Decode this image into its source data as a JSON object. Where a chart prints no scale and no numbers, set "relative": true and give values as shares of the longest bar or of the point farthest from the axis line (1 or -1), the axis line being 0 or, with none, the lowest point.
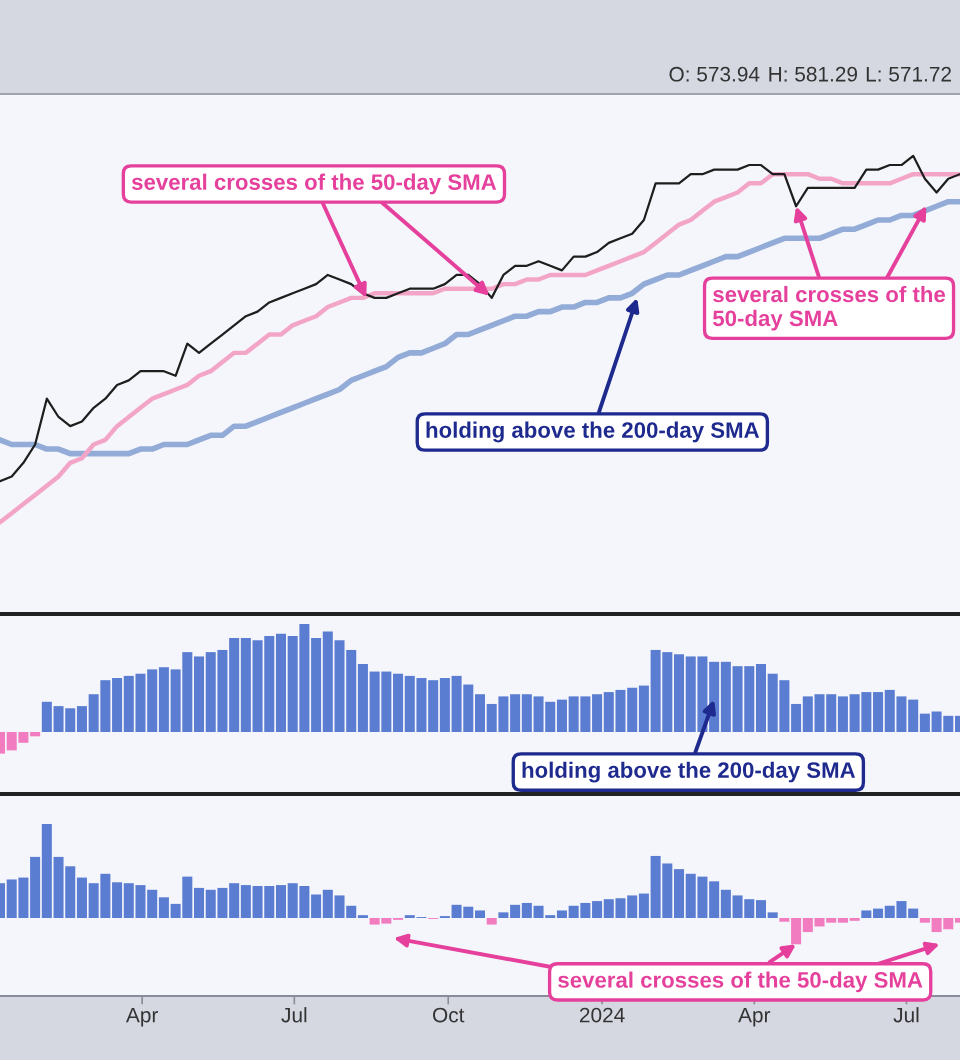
{
  "chart_data": [
    {
      "type": "line",
      "relative": true,
      "x": [
        "2023-01-06",
        "2023-01-13",
        "2023-01-20",
        "2023-01-27",
        "2023-02-03",
        "2023-02-10",
        "2023-02-17",
        "2023-02-24",
        "2023-03-03",
        "2023-03-10",
        "2023-03-17",
        "2023-03-24",
        "2023-03-31",
        "2023-04-07",
        "2023-04-14",
        "2023-04-21",
        "2023-04-28",
        "2023-05-05",
        "2023-05-12",
        "2023-05-19",
        "2023-05-26",
        "2023-06-02",
        "2023-06-09",
        "2023-06-16",
        "2023-06-23",
        "2023-06-30",
        "2023-07-07",
        "2023-07-14",
        "2023-07-21",
        "2023-07-28",
        "2023-08-04",
        "2023-08-11",
        "2023-08-18",
        "2023-08-25",
        "2023-09-01",
        "2023-09-08",
        "2023-09-15",
        "2023-09-22",
        "2023-09-29",
        "2023-10-06",
        "2023-10-13",
        "2023-10-20",
        "2023-10-27",
        "2023-11-03",
        "2023-11-10",
        "2023-11-17",
        "2023-11-24",
        "2023-12-01",
        "2023-12-08",
        "2023-12-15",
        "2023-12-22",
        "2023-12-29",
        "2024-01-05",
        "2024-01-12",
        "2024-01-19",
        "2024-01-26",
        "2024-02-02",
        "2024-02-09",
        "2024-02-16",
        "2024-02-23",
        "2024-03-01",
        "2024-03-08",
        "2024-03-15",
        "2024-03-22",
        "2024-03-29",
        "2024-04-05",
        "2024-04-12",
        "2024-04-19",
        "2024-04-26",
        "2024-05-03",
        "2024-05-10",
        "2024-05-17",
        "2024-05-24",
        "2024-05-31",
        "2024-06-07",
        "2024-06-14",
        "2024-06-21",
        "2024-06-28",
        "2024-07-05",
        "2024-07-12",
        "2024-07-19",
        "2024-07-26",
        "2024-08-02"
      ],
      "series": [
        {
          "color": "#1e1e1e",
          "values": [
            0.29,
            0.3,
            0.33,
            0.37,
            0.47,
            0.43,
            0.41,
            0.42,
            0.45,
            0.47,
            0.5,
            0.51,
            0.53,
            0.53,
            0.53,
            0.52,
            0.59,
            0.57,
            0.59,
            0.61,
            0.63,
            0.65,
            0.66,
            0.68,
            0.69,
            0.7,
            0.71,
            0.72,
            0.74,
            0.73,
            0.72,
            0.7,
            0.69,
            0.69,
            0.7,
            0.71,
            0.71,
            0.71,
            0.72,
            0.74,
            0.74,
            0.72,
            0.69,
            0.74,
            0.76,
            0.76,
            0.77,
            0.76,
            0.75,
            0.78,
            0.78,
            0.79,
            0.81,
            0.82,
            0.83,
            0.86,
            0.94,
            0.94,
            0.94,
            0.96,
            0.96,
            0.97,
            0.97,
            0.97,
            0.98,
            0.98,
            0.96,
            0.96,
            0.89,
            0.93,
            0.93,
            0.93,
            0.93,
            0.93,
            0.97,
            0.97,
            0.98,
            0.98,
            1,
            0.95,
            0.92,
            0.95,
            0.96
          ]
        },
        {
          "color": "#f3a5c8",
          "values": [
            0.2,
            0.22,
            0.24,
            0.26,
            0.28,
            0.3,
            0.33,
            0.34,
            0.37,
            0.38,
            0.41,
            0.43,
            0.45,
            0.47,
            0.48,
            0.49,
            0.5,
            0.52,
            0.53,
            0.55,
            0.57,
            0.57,
            0.59,
            0.61,
            0.61,
            0.63,
            0.64,
            0.65,
            0.67,
            0.68,
            0.69,
            0.69,
            0.7,
            0.7,
            0.7,
            0.7,
            0.7,
            0.7,
            0.71,
            0.71,
            0.71,
            0.71,
            0.71,
            0.72,
            0.72,
            0.73,
            0.73,
            0.74,
            0.74,
            0.74,
            0.74,
            0.75,
            0.76,
            0.77,
            0.78,
            0.79,
            0.81,
            0.83,
            0.85,
            0.86,
            0.88,
            0.9,
            0.91,
            0.92,
            0.94,
            0.94,
            0.96,
            0.96,
            0.96,
            0.96,
            0.95,
            0.95,
            0.94,
            0.94,
            0.94,
            0.94,
            0.94,
            0.95,
            0.96,
            0.96,
            0.96,
            0.96,
            0.96
          ]
        },
        {
          "color": "#92abd7",
          "values": [
            0.38,
            0.37,
            0.37,
            0.37,
            0.36,
            0.36,
            0.35,
            0.35,
            0.35,
            0.35,
            0.35,
            0.35,
            0.36,
            0.36,
            0.37,
            0.37,
            0.37,
            0.38,
            0.39,
            0.39,
            0.41,
            0.41,
            0.42,
            0.43,
            0.44,
            0.45,
            0.46,
            0.47,
            0.48,
            0.49,
            0.51,
            0.52,
            0.53,
            0.54,
            0.56,
            0.57,
            0.57,
            0.58,
            0.59,
            0.61,
            0.61,
            0.62,
            0.63,
            0.64,
            0.65,
            0.65,
            0.66,
            0.66,
            0.67,
            0.67,
            0.68,
            0.68,
            0.69,
            0.69,
            0.7,
            0.72,
            0.73,
            0.74,
            0.74,
            0.75,
            0.76,
            0.77,
            0.78,
            0.78,
            0.79,
            0.8,
            0.81,
            0.82,
            0.82,
            0.82,
            0.82,
            0.83,
            0.84,
            0.84,
            0.85,
            0.86,
            0.86,
            0.87,
            0.87,
            0.88,
            0.89,
            0.9,
            0.9
          ]
        }
      ],
      "xlim": [
        "2023-01-06",
        "2024-08-02"
      ],
      "tick_labels": false,
      "annotations": [
        {
          "text": "several crosses of the 50-day SMA",
          "x": "2023-08-13",
          "y": 0.69
        },
        {
          "text": "several crosses of the 50-day SMA",
          "x": "2024-04-26",
          "y": 0.89
        },
        {
          "text": "holding above the 200-day SMA",
          "x": "2024-01-22",
          "y": 0.69
        },
        "O: 573.94",
        "H: 581.29",
        "L: 571.72"
      ]
    },
    {
      "type": "bar",
      "relative": true,
      "x": [
        "2023-01-06",
        "2023-01-13",
        "2023-01-20",
        "2023-01-27",
        "2023-02-03",
        "2023-02-10",
        "2023-02-17",
        "2023-02-24",
        "2023-03-03",
        "2023-03-10",
        "2023-03-17",
        "2023-03-24",
        "2023-03-31",
        "2023-04-07",
        "2023-04-14",
        "2023-04-21",
        "2023-04-28",
        "2023-05-05",
        "2023-05-12",
        "2023-05-19",
        "2023-05-26",
        "2023-06-02",
        "2023-06-09",
        "2023-06-16",
        "2023-06-23",
        "2023-06-30",
        "2023-07-07",
        "2023-07-14",
        "2023-07-21",
        "2023-07-28",
        "2023-08-04",
        "2023-08-11",
        "2023-08-18",
        "2023-08-25",
        "2023-09-01",
        "2023-09-08",
        "2023-09-15",
        "2023-09-22",
        "2023-09-29",
        "2023-10-06",
        "2023-10-13",
        "2023-10-20",
        "2023-10-27",
        "2023-11-03",
        "2023-11-10",
        "2023-11-17",
        "2023-11-24",
        "2023-12-01",
        "2023-12-08",
        "2023-12-15",
        "2023-12-22",
        "2023-12-29",
        "2024-01-05",
        "2024-01-12",
        "2024-01-19",
        "2024-01-26",
        "2024-02-02",
        "2024-02-09",
        "2024-02-16",
        "2024-02-23",
        "2024-03-01",
        "2024-03-08",
        "2024-03-15",
        "2024-03-22",
        "2024-03-29",
        "2024-04-05",
        "2024-04-12",
        "2024-04-19",
        "2024-04-26",
        "2024-05-03",
        "2024-05-10",
        "2024-05-17",
        "2024-05-24",
        "2024-05-31",
        "2024-06-07",
        "2024-06-14",
        "2024-06-21",
        "2024-06-28",
        "2024-07-05",
        "2024-07-12",
        "2024-07-19",
        "2024-07-26",
        "2024-08-02"
      ],
      "values": [
        -0.2,
        -0.17,
        -0.1,
        -0.04,
        0.28,
        0.24,
        0.22,
        0.24,
        0.35,
        0.48,
        0.5,
        0.52,
        0.54,
        0.58,
        0.6,
        0.58,
        0.74,
        0.7,
        0.74,
        0.76,
        0.87,
        0.87,
        0.85,
        0.89,
        0.91,
        0.89,
        1,
        0.87,
        0.93,
        0.85,
        0.76,
        0.63,
        0.56,
        0.56,
        0.54,
        0.52,
        0.5,
        0.48,
        0.5,
        0.52,
        0.44,
        0.35,
        0.26,
        0.33,
        0.35,
        0.35,
        0.33,
        0.28,
        0.3,
        0.33,
        0.33,
        0.35,
        0.37,
        0.39,
        0.41,
        0.43,
        0.76,
        0.74,
        0.72,
        0.7,
        0.7,
        0.65,
        0.65,
        0.61,
        0.61,
        0.63,
        0.54,
        0.48,
        0.26,
        0.33,
        0.35,
        0.35,
        0.33,
        0.35,
        0.37,
        0.37,
        0.39,
        0.33,
        0.3,
        0.17,
        0.19,
        0.15,
        0.15
      ],
      "colors": [
        "#f27cc0",
        "#f27cc0",
        "#f27cc0",
        "#f27cc0",
        "#5a7dd2",
        "#5a7dd2",
        "#5a7dd2",
        "#5a7dd2",
        "#5a7dd2",
        "#5a7dd2",
        "#5a7dd2",
        "#5a7dd2",
        "#5a7dd2",
        "#5a7dd2",
        "#5a7dd2",
        "#5a7dd2",
        "#5a7dd2",
        "#5a7dd2",
        "#5a7dd2",
        "#5a7dd2",
        "#5a7dd2",
        "#5a7dd2",
        "#5a7dd2",
        "#5a7dd2",
        "#5a7dd2",
        "#5a7dd2",
        "#5a7dd2",
        "#5a7dd2",
        "#5a7dd2",
        "#5a7dd2",
        "#5a7dd2",
        "#5a7dd2",
        "#5a7dd2",
        "#5a7dd2",
        "#5a7dd2",
        "#5a7dd2",
        "#5a7dd2",
        "#5a7dd2",
        "#5a7dd2",
        "#5a7dd2",
        "#5a7dd2",
        "#5a7dd2",
        "#5a7dd2",
        "#5a7dd2",
        "#5a7dd2",
        "#5a7dd2",
        "#5a7dd2",
        "#5a7dd2",
        "#5a7dd2",
        "#5a7dd2",
        "#5a7dd2",
        "#5a7dd2",
        "#5a7dd2",
        "#5a7dd2",
        "#5a7dd2",
        "#5a7dd2",
        "#5a7dd2",
        "#5a7dd2",
        "#5a7dd2",
        "#5a7dd2",
        "#5a7dd2",
        "#5a7dd2",
        "#5a7dd2",
        "#5a7dd2",
        "#5a7dd2",
        "#5a7dd2",
        "#5a7dd2",
        "#5a7dd2",
        "#5a7dd2",
        "#5a7dd2",
        "#5a7dd2",
        "#5a7dd2",
        "#5a7dd2",
        "#5a7dd2",
        "#5a7dd2",
        "#5a7dd2",
        "#5a7dd2",
        "#5a7dd2",
        "#5a7dd2",
        "#5a7dd2",
        "#5a7dd2",
        "#5a7dd2",
        "#5a7dd2"
      ],
      "xlim": [
        "2023-01-06",
        "2024-08-02"
      ],
      "tick_labels": false,
      "annotations": [
        {
          "text": "holding above the 200-day SMA",
          "x": "2024-03-08",
          "y": 0.3
        }
      ]
    },
    {
      "type": "bar",
      "relative": true,
      "x": [
        "2023-01-06",
        "2023-01-13",
        "2023-01-20",
        "2023-01-27",
        "2023-02-03",
        "2023-02-10",
        "2023-02-17",
        "2023-02-24",
        "2023-03-03",
        "2023-03-10",
        "2023-03-17",
        "2023-03-24",
        "2023-03-31",
        "2023-04-07",
        "2023-04-14",
        "2023-04-21",
        "2023-04-28",
        "2023-05-05",
        "2023-05-12",
        "2023-05-19",
        "2023-05-26",
        "2023-06-02",
        "2023-06-09",
        "2023-06-16",
        "2023-06-23",
        "2023-06-30",
        "2023-07-07",
        "2023-07-14",
        "2023-07-21",
        "2023-07-28",
        "2023-08-04",
        "2023-08-11",
        "2023-08-18",
        "2023-08-25",
        "2023-09-01",
        "2023-09-08",
        "2023-09-15",
        "2023-09-22",
        "2023-09-29",
        "2023-10-06",
        "2023-10-13",
        "2023-10-20",
        "2023-10-27",
        "2023-11-03",
        "2023-11-10",
        "2023-11-17",
        "2023-11-24",
        "2023-12-01",
        "2023-12-08",
        "2023-12-15",
        "2023-12-22",
        "2023-12-29",
        "2024-01-05",
        "2024-01-12",
        "2024-01-19",
        "2024-01-26",
        "2024-02-02",
        "2024-02-09",
        "2024-02-16",
        "2024-02-23",
        "2024-03-01",
        "2024-03-08",
        "2024-03-15",
        "2024-03-22",
        "2024-03-29",
        "2024-04-05",
        "2024-04-12",
        "2024-04-19",
        "2024-04-26",
        "2024-05-03",
        "2024-05-10",
        "2024-05-17",
        "2024-05-24",
        "2024-05-31",
        "2024-06-07",
        "2024-06-14",
        "2024-06-21",
        "2024-06-28",
        "2024-07-05",
        "2024-07-12",
        "2024-07-19",
        "2024-07-26",
        "2024-08-02"
      ],
      "values": [
        0.37,
        0.41,
        0.43,
        0.65,
        1,
        0.65,
        0.55,
        0.43,
        0.37,
        0.47,
        0.38,
        0.37,
        0.35,
        0.3,
        0.22,
        0.15,
        0.44,
        0.32,
        0.3,
        0.32,
        0.37,
        0.35,
        0.34,
        0.34,
        0.35,
        0.37,
        0.34,
        0.25,
        0.3,
        0.24,
        0.13,
        0.03,
        -0.07,
        -0.06,
        -0.02,
        0.03,
        0.01,
        -0.01,
        0.02,
        0.14,
        0.12,
        0.08,
        -0.07,
        0.06,
        0.14,
        0.16,
        0.13,
        0.03,
        0.08,
        0.13,
        0.16,
        0.18,
        0.2,
        0.21,
        0.24,
        0.26,
        0.66,
        0.58,
        0.52,
        0.47,
        0.44,
        0.39,
        0.3,
        0.24,
        0.2,
        0.19,
        0.06,
        -0.04,
        -0.28,
        -0.15,
        -0.09,
        -0.05,
        -0.05,
        -0.03,
        0.08,
        0.1,
        0.13,
        0.18,
        0.1,
        -0.05,
        -0.15,
        -0.12,
        -0.05
      ],
      "colors": [
        "#5a7dd2",
        "#5a7dd2",
        "#5a7dd2",
        "#5a7dd2",
        "#5a7dd2",
        "#5a7dd2",
        "#5a7dd2",
        "#5a7dd2",
        "#5a7dd2",
        "#5a7dd2",
        "#5a7dd2",
        "#5a7dd2",
        "#5a7dd2",
        "#5a7dd2",
        "#5a7dd2",
        "#5a7dd2",
        "#5a7dd2",
        "#5a7dd2",
        "#5a7dd2",
        "#5a7dd2",
        "#5a7dd2",
        "#5a7dd2",
        "#5a7dd2",
        "#5a7dd2",
        "#5a7dd2",
        "#5a7dd2",
        "#5a7dd2",
        "#5a7dd2",
        "#5a7dd2",
        "#5a7dd2",
        "#5a7dd2",
        "#5a7dd2",
        "#f27cc0",
        "#f27cc0",
        "#f27cc0",
        "#5a7dd2",
        "#5a7dd2",
        "#f27cc0",
        "#5a7dd2",
        "#5a7dd2",
        "#5a7dd2",
        "#5a7dd2",
        "#f27cc0",
        "#5a7dd2",
        "#5a7dd2",
        "#5a7dd2",
        "#5a7dd2",
        "#5a7dd2",
        "#5a7dd2",
        "#5a7dd2",
        "#5a7dd2",
        "#5a7dd2",
        "#5a7dd2",
        "#5a7dd2",
        "#5a7dd2",
        "#5a7dd2",
        "#5a7dd2",
        "#5a7dd2",
        "#5a7dd2",
        "#5a7dd2",
        "#5a7dd2",
        "#5a7dd2",
        "#5a7dd2",
        "#5a7dd2",
        "#5a7dd2",
        "#5a7dd2",
        "#5a7dd2",
        "#f27cc0",
        "#f27cc0",
        "#f27cc0",
        "#f27cc0",
        "#f27cc0",
        "#f27cc0",
        "#f27cc0",
        "#5a7dd2",
        "#5a7dd2",
        "#5a7dd2",
        "#5a7dd2",
        "#5a7dd2",
        "#f27cc0",
        "#f27cc0",
        "#f27cc0",
        "#f27cc0"
      ],
      "xlim": [
        "2023-01-06",
        "2024-08-02"
      ],
      "xticks": [
        {
          "value": "2023-04-01",
          "label": "Apr"
        },
        {
          "value": "2023-07-01",
          "label": "Jul"
        },
        {
          "value": "2023-10-01",
          "label": "Oct"
        },
        {
          "value": "2024-01-01",
          "label": "2024"
        },
        {
          "value": "2024-04-01",
          "label": "Apr"
        },
        {
          "value": "2024-07-01",
          "label": "Jul"
        }
      ],
      "tick_labels": "x",
      "annotations": [
        {
          "text": "several crosses of the 50-day SMA",
          "x": "2024-04-26",
          "y": -0.28
        }
      ]
    }
  ]
}
